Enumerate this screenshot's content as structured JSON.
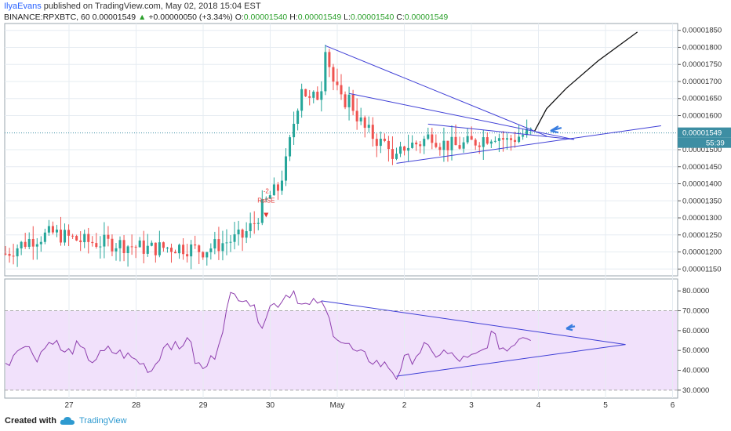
{
  "header": {
    "author": "IlyaEvans",
    "published": "published on TradingView.com, May 02, 2018 15:04 EST",
    "symbol": "BINANCE:RPXBTC, 60",
    "last": "0.00001549",
    "change_arrow": "▲",
    "change": "+0.00000050 (+3.34%)",
    "o_label": "O:",
    "o": "0.00001540",
    "h_label": "H:",
    "h": "0.00001549",
    "l_label": "L:",
    "l": "0.00001540",
    "c_label": "C:",
    "c": "0.00001549"
  },
  "footer": {
    "created": "Created with",
    "brand": "TradingView",
    "logo_icon": "tradingview-cloud-icon"
  },
  "colors": {
    "up": "#26a69a",
    "down": "#ef5350",
    "trendline": "#3f3fd6",
    "rsi_line": "#8e3fae",
    "rsi_band": "#f1e1fb",
    "price_tag": "#3d8ea3",
    "arrow": "#3a7ee0",
    "grid": "#e6ecf2"
  },
  "chart_data": [
    {
      "type": "candlestick",
      "title": "",
      "y_ticks": [
        "0.00001850",
        "0.00001800",
        "0.00001750",
        "0.00001700",
        "0.00001650",
        "0.00001600",
        "0.00001500",
        "0.00001450",
        "0.00001400",
        "0.00001350",
        "0.00001300",
        "0.00001250",
        "0.00001200",
        "0.00001150"
      ],
      "y_range": [
        1.13e-05,
        1.87e-05
      ],
      "x_labels": [
        "27",
        "28",
        "29",
        "30",
        "May",
        "2",
        "3",
        "4",
        "5",
        "6"
      ],
      "last_price": 1.549e-05,
      "last_price_label": "0.00001549",
      "countdown_label": "55:39",
      "annotation": {
        "text_top": "-2",
        "text_bottom": "RsiSE",
        "color": "#e53935"
      },
      "price_path_anchors": [
        [
          0,
          1.195e-05
        ],
        [
          6,
          1.235e-05
        ],
        [
          12,
          1.255e-05
        ],
        [
          20,
          1.23e-05
        ],
        [
          28,
          1.225e-05
        ],
        [
          36,
          1.21e-05
        ],
        [
          44,
          1.215e-05
        ],
        [
          50,
          1.205e-05
        ],
        [
          56,
          1.23e-05
        ],
        [
          60,
          1.245e-05
        ],
        [
          63,
          1.285e-05
        ],
        [
          65,
          1.33e-05
        ],
        [
          67,
          1.365e-05
        ],
        [
          69,
          1.385e-05
        ],
        [
          71,
          1.46e-05
        ],
        [
          73,
          1.58e-05
        ],
        [
          75,
          1.69e-05
        ],
        [
          77,
          1.64e-05
        ],
        [
          79,
          1.66e-05
        ],
        [
          80,
          1.69e-05
        ],
        [
          81,
          1.81e-05
        ],
        [
          82,
          1.75e-05
        ],
        [
          83,
          1.7e-05
        ],
        [
          85,
          1.64e-05
        ],
        [
          87,
          1.65e-05
        ],
        [
          89,
          1.6e-05
        ],
        [
          91,
          1.56e-05
        ],
        [
          93,
          1.54e-05
        ],
        [
          95,
          1.52e-05
        ],
        [
          97,
          1.52e-05
        ],
        [
          98,
          1.46e-05
        ],
        [
          99,
          1.47e-05
        ],
        [
          101,
          1.51e-05
        ],
        [
          105,
          1.52e-05
        ],
        [
          108,
          1.545e-05
        ],
        [
          110,
          1.52e-05
        ],
        [
          114,
          1.51e-05
        ],
        [
          118,
          1.52e-05
        ],
        [
          121,
          1.535e-05
        ],
        [
          124,
          1.545e-05
        ],
        [
          127,
          1.525e-05
        ],
        [
          130,
          1.54e-05
        ],
        [
          133,
          1.55e-05
        ]
      ],
      "trendlines_price": [
        {
          "from": [
            81,
            1.805e-05
          ],
          "to": [
            137,
            1.54e-05
          ]
        },
        {
          "from": [
            87,
            1.665e-05
          ],
          "to": [
            144,
            1.53e-05
          ]
        },
        {
          "from": [
            107,
            1.575e-05
          ],
          "to": [
            144,
            1.53e-05
          ]
        },
        {
          "from": [
            99,
            1.46e-05
          ],
          "to": [
            166,
            1.57e-05
          ]
        }
      ],
      "freehand_projection": [
        [
          134,
          1.555e-05
        ],
        [
          137,
          1.62e-05
        ],
        [
          142,
          1.68e-05
        ],
        [
          150,
          1.76e-05
        ],
        [
          160,
          1.845e-05
        ]
      ]
    },
    {
      "type": "line",
      "series": [
        {
          "values_from": "price_path_anchors"
        }
      ],
      "y_ticks": [
        "80.0000",
        "70.0000",
        "60.0000",
        "50.0000",
        "40.0000",
        "30.0000"
      ],
      "y_range": [
        26,
        86
      ],
      "band": [
        30,
        70
      ],
      "rsi_anchors": [
        [
          0,
          42
        ],
        [
          4,
          54
        ],
        [
          8,
          47
        ],
        [
          12,
          56
        ],
        [
          15,
          48
        ],
        [
          18,
          52
        ],
        [
          22,
          45
        ],
        [
          26,
          50
        ],
        [
          30,
          48
        ],
        [
          34,
          44
        ],
        [
          37,
          40
        ],
        [
          41,
          55
        ],
        [
          44,
          50
        ],
        [
          46,
          58
        ],
        [
          48,
          45
        ],
        [
          50,
          40
        ],
        [
          53,
          48
        ],
        [
          55,
          62
        ],
        [
          57,
          77
        ],
        [
          59,
          78
        ],
        [
          61,
          77
        ],
        [
          63,
          70
        ],
        [
          65,
          64
        ],
        [
          67,
          72
        ],
        [
          69,
          74
        ],
        [
          71,
          78
        ],
        [
          73,
          80
        ],
        [
          75,
          73
        ],
        [
          77,
          72
        ],
        [
          79,
          75
        ],
        [
          81,
          70
        ],
        [
          83,
          60
        ],
        [
          85,
          55
        ],
        [
          87,
          52
        ],
        [
          89,
          48
        ],
        [
          91,
          47
        ],
        [
          93,
          45
        ],
        [
          95,
          43
        ],
        [
          97,
          42
        ],
        [
          99,
          37
        ],
        [
          101,
          45
        ],
        [
          103,
          46
        ],
        [
          106,
          52
        ],
        [
          108,
          48
        ],
        [
          111,
          49
        ],
        [
          114,
          46
        ],
        [
          117,
          45
        ],
        [
          119,
          47
        ],
        [
          121,
          50
        ],
        [
          123,
          58
        ],
        [
          125,
          53
        ],
        [
          127,
          50
        ],
        [
          129,
          55
        ],
        [
          131,
          58
        ],
        [
          133,
          57
        ]
      ],
      "trendlines_rsi": [
        {
          "from": [
            80,
            75
          ],
          "to": [
            157,
            53
          ]
        },
        {
          "from": [
            99,
            37
          ],
          "to": [
            157,
            53
          ]
        }
      ]
    }
  ]
}
